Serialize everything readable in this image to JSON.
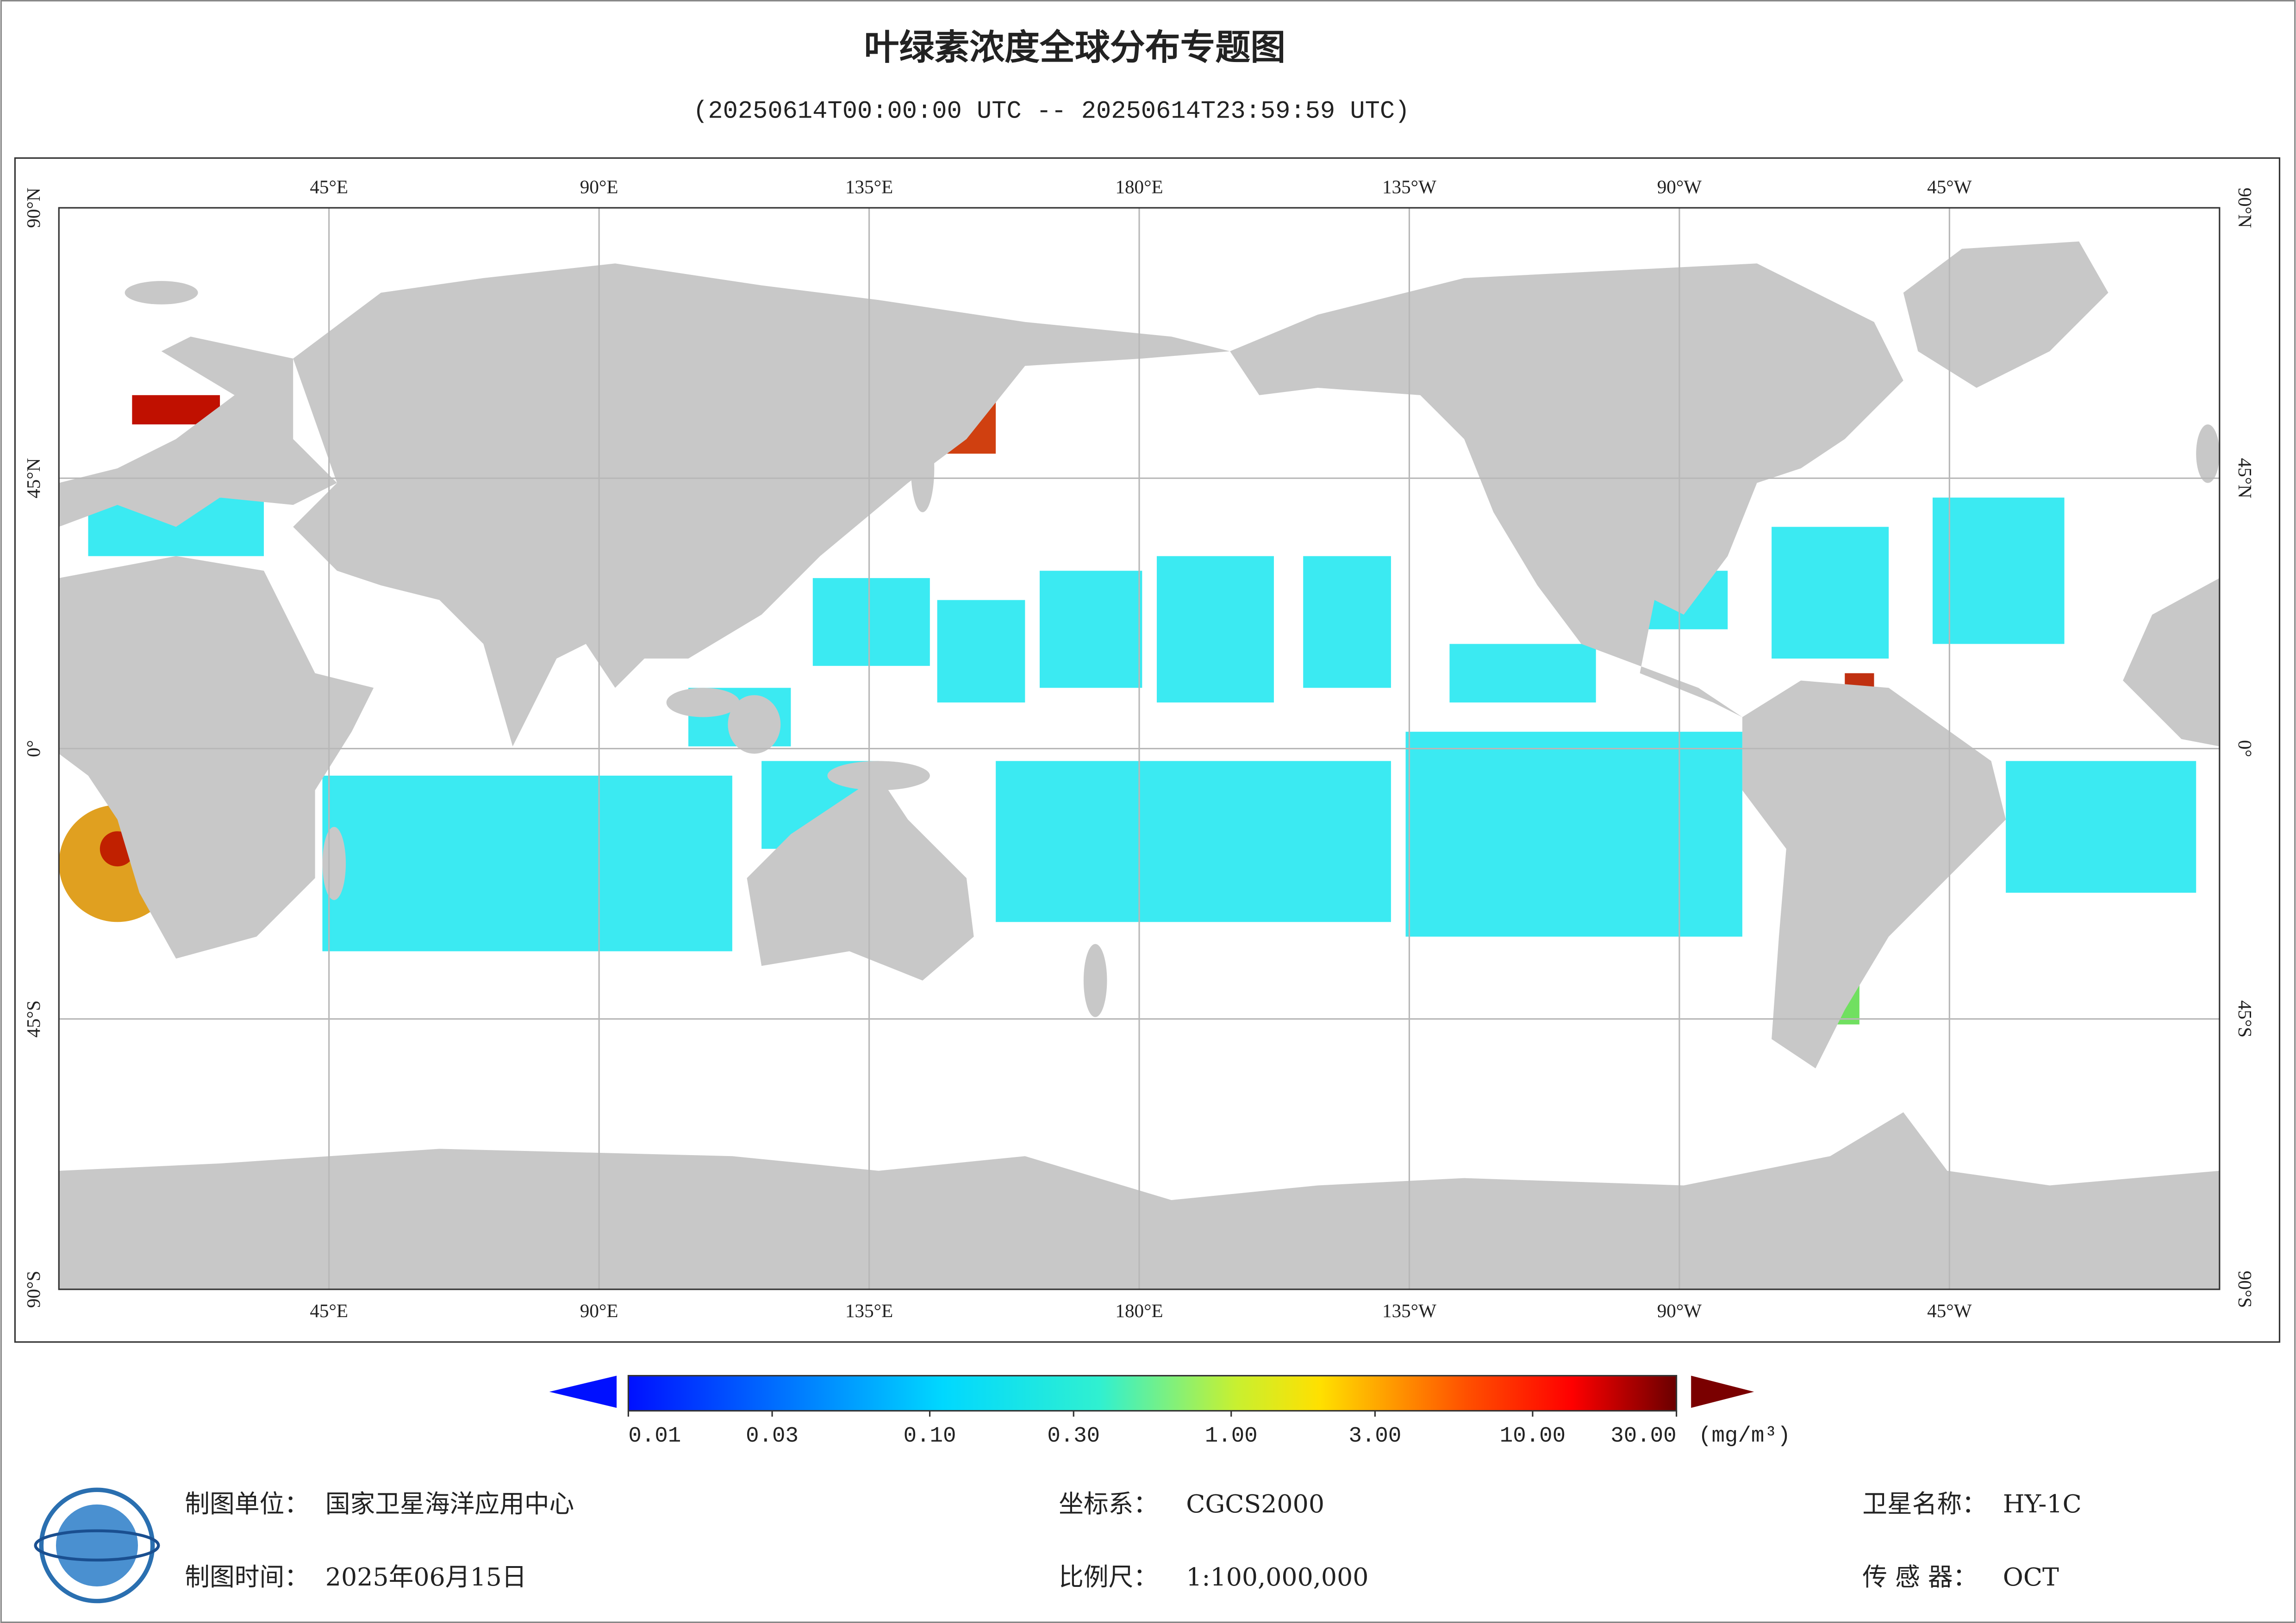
{
  "header": {
    "title": "叶绿素浓度全球分布专题图",
    "subtitle": "(20250614T00:00:00 UTC -- 20250614T23:59:59 UTC)"
  },
  "map": {
    "lon_labels": [
      "45°E",
      "90°E",
      "135°E",
      "180°E",
      "135°W",
      "90°W",
      "45°W"
    ],
    "lat_labels": [
      "90°N",
      "45°N",
      "0°",
      "45°S",
      "90°S"
    ]
  },
  "colorbar": {
    "ticks": [
      {
        "value": 0.01,
        "label": "0.01"
      },
      {
        "value": 0.03,
        "label": "0.03"
      },
      {
        "value": 0.1,
        "label": "0.10"
      },
      {
        "value": 0.3,
        "label": "0.30"
      },
      {
        "value": 1,
        "label": "1.00"
      },
      {
        "value": 3,
        "label": "3.00"
      },
      {
        "value": 10,
        "label": "10.00"
      },
      {
        "value": 30,
        "label": "30.00"
      }
    ],
    "log_scale": true,
    "unit": "(mg/m³)"
  },
  "footer": {
    "unit_label": "制图单位：",
    "unit": "国家卫星海洋应用中心",
    "date_label": "制图时间：",
    "date": "2025年06月15日",
    "crs_label": "坐标系：",
    "crs": "CGCS2000",
    "scale_label": "比例尺：",
    "scale": "1:100,000,000",
    "satellite_label": "卫星名称：",
    "satellite": "HY-1C",
    "sensor_label": "传 感 器：",
    "sensor": "OCT"
  }
}
